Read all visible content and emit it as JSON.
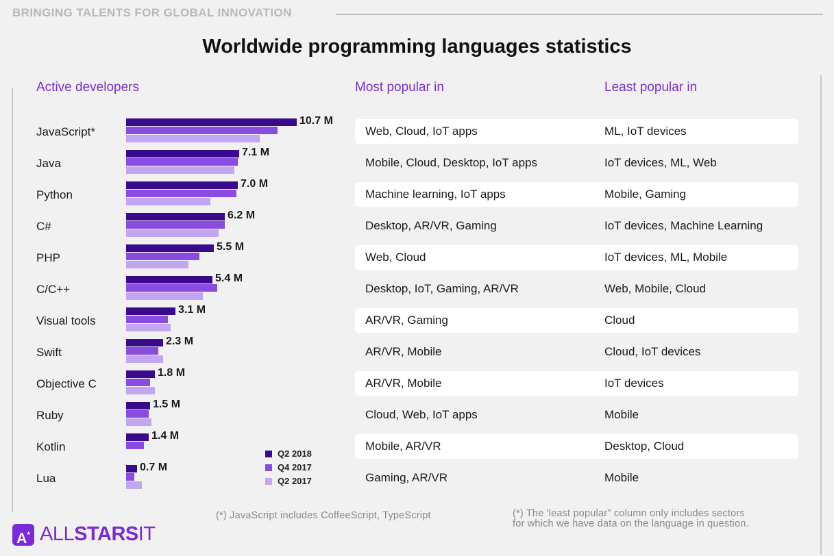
{
  "header": {
    "tagline": "BRINGING TALENTS FOR GLOBAL INNOVATION",
    "title": "Worldwide programming languages statistics"
  },
  "columns": {
    "active": "Active developers",
    "most": "Most popular in",
    "least": "Least popular in"
  },
  "colors": {
    "q2_2018": "#3a0a8c",
    "q4_2017": "#8a4be0",
    "q2_2017": "#c2a6f2",
    "accent": "#7a2fd3"
  },
  "chart_data": {
    "type": "bar",
    "orientation": "horizontal",
    "title": "Active developers",
    "categories": [
      "JavaScript*",
      "Java",
      "Python",
      "C#",
      "PHP",
      "C/C++",
      "Visual tools",
      "Swift",
      "Objective C",
      "Ruby",
      "Kotlin",
      "Lua"
    ],
    "value_labels": [
      "10.7 M",
      "7.1 M",
      "7.0 M",
      "6.2 M",
      "5.5 M",
      "5.4 M",
      "3.1 M",
      "2.3 M",
      "1.8 M",
      "1.5 M",
      "1.4 M",
      "0.7 M"
    ],
    "series": [
      {
        "name": "Q2 2018",
        "values": [
          10.7,
          7.1,
          7.0,
          6.2,
          5.5,
          5.4,
          3.1,
          2.3,
          1.8,
          1.5,
          1.4,
          0.7
        ]
      },
      {
        "name": "Q4 2017",
        "values": [
          9.5,
          7.0,
          6.9,
          6.2,
          4.6,
          5.7,
          2.6,
          2.0,
          1.5,
          1.4,
          1.1,
          0.5
        ]
      },
      {
        "name": "Q2 2017",
        "values": [
          8.4,
          6.8,
          5.3,
          5.8,
          3.9,
          4.8,
          2.8,
          2.3,
          1.8,
          1.6,
          0.0,
          1.0
        ]
      }
    ],
    "xlim": [
      0,
      10.7
    ],
    "legend_position": "bottom-right",
    "grid": false
  },
  "table": {
    "rows": [
      {
        "most": "Web, Cloud, IoT apps",
        "least": "ML, IoT devices"
      },
      {
        "most": "Mobile, Cloud, Desktop, IoT apps",
        "least": "IoT devices, ML, Web"
      },
      {
        "most": "Machine learning, IoT apps",
        "least": "Mobile, Gaming"
      },
      {
        "most": "Desktop, AR/VR, Gaming",
        "least": "IoT devices, Machine Learning"
      },
      {
        "most": "Web, Cloud",
        "least": "IoT devices, ML, Mobile"
      },
      {
        "most": "Desktop, IoT, Gaming, AR/VR",
        "least": "Web, Mobile, Cloud"
      },
      {
        "most": "AR/VR, Gaming",
        "least": "Cloud"
      },
      {
        "most": "AR/VR, Mobile",
        "least": "Cloud, IoT devices"
      },
      {
        "most": "AR/VR, Mobile",
        "least": "IoT devices"
      },
      {
        "most": "Cloud, Web, IoT apps",
        "least": "Mobile"
      },
      {
        "most": "Mobile, AR/VR",
        "least": "Desktop, Cloud"
      },
      {
        "most": "Gaming, AR/VR",
        "least": "Mobile"
      }
    ]
  },
  "notes": {
    "left": "(*) JavaScript includes CoffeeScript, TypeScript",
    "right_line1": "(*) The 'least popular\" column only includes sectors",
    "right_line2": "for which we have data on the language in question."
  },
  "logo": {
    "badge": "A",
    "badge_mark": "*",
    "text_light": "ALL",
    "text_bold": "STARS",
    "text_tail": "IT"
  }
}
